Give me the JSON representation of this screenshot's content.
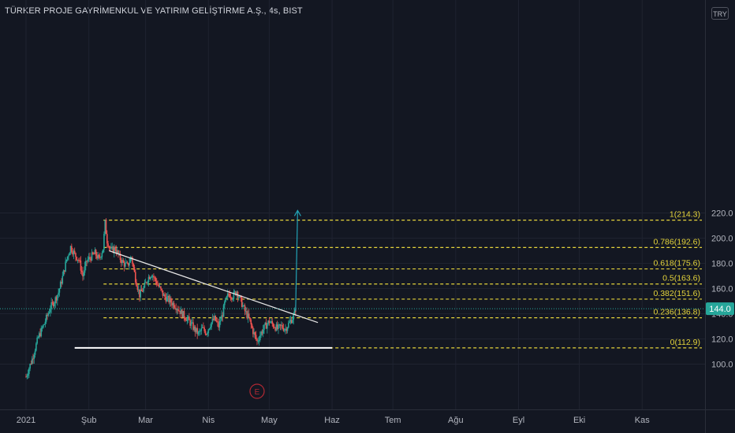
{
  "header": {
    "title": "TÜRKER PROJE GAYRİMENKUL VE YATIRIM GELİŞTİRME A.Ş., 4s, BIST",
    "currency": "TRY"
  },
  "colors": {
    "background": "#131722",
    "grid": "#1f2330",
    "fib": "#e5d43b",
    "up": "#26a69a",
    "down": "#ef5350",
    "trendline": "#e8e8e8",
    "support": "#ffffff",
    "arrow": "#22a2b5",
    "price_label": "#26a69a",
    "event": "#b22833"
  },
  "chart_data": {
    "type": "candlestick",
    "symbol": "TÜRKER PROJE GAYRİMENKUL VE YATIRIM GELİŞTİRME A.Ş.",
    "interval": "4s",
    "exchange": "BIST",
    "x_ticks": [
      "2021",
      "Şub",
      "Mar",
      "Nis",
      "May",
      "Haz",
      "Tem",
      "Ağu",
      "Eyl",
      "Eki",
      "Kas"
    ],
    "y_ticks": [
      100.0,
      120.0,
      140.0,
      160.0,
      180.0,
      200.0,
      220.0
    ],
    "y_tick_labels": [
      "100.0",
      "120.0",
      "140.0",
      "160.0",
      "180.0",
      "200.0",
      "220.0"
    ],
    "ylim": [
      80,
      233
    ],
    "last_price": 144.0,
    "last_price_label": "144.0",
    "fib_levels": [
      {
        "ratio": 1,
        "value": 214.3,
        "label": "1(214.3)"
      },
      {
        "ratio": 0.786,
        "value": 192.6,
        "label": "0.786(192.6)"
      },
      {
        "ratio": 0.618,
        "value": 175.6,
        "label": "0.618(175.6)"
      },
      {
        "ratio": 0.5,
        "value": 163.6,
        "label": "0.5(163.6)"
      },
      {
        "ratio": 0.382,
        "value": 151.6,
        "label": "0.382(151.6)"
      },
      {
        "ratio": 0.236,
        "value": 136.8,
        "label": "0.236(136.8)"
      },
      {
        "ratio": 0,
        "value": 112.9,
        "label": "0(112.9)"
      }
    ],
    "price_path": [
      [
        "2021-01-01",
        90
      ],
      [
        "2021-01-04",
        104
      ],
      [
        "2021-01-07",
        121
      ],
      [
        "2021-01-10",
        132
      ],
      [
        "2021-01-13",
        145
      ],
      [
        "2021-01-15",
        150
      ],
      [
        "2021-01-17",
        157
      ],
      [
        "2021-01-19",
        169
      ],
      [
        "2021-01-21",
        183
      ],
      [
        "2021-01-23",
        193
      ],
      [
        "2021-01-25",
        187
      ],
      [
        "2021-01-27",
        183
      ],
      [
        "2021-01-29",
        170
      ],
      [
        "2021-01-31",
        182
      ],
      [
        "2021-02-02",
        185
      ],
      [
        "2021-02-04",
        188
      ],
      [
        "2021-02-06",
        183
      ],
      [
        "2021-02-08",
        192
      ],
      [
        "2021-02-09",
        212
      ],
      [
        "2021-02-10",
        198
      ],
      [
        "2021-02-12",
        190
      ],
      [
        "2021-02-14",
        192
      ],
      [
        "2021-02-16",
        185
      ],
      [
        "2021-02-18",
        180
      ],
      [
        "2021-02-20",
        178
      ],
      [
        "2021-02-22",
        185
      ],
      [
        "2021-02-24",
        168
      ],
      [
        "2021-02-26",
        155
      ],
      [
        "2021-02-28",
        160
      ],
      [
        "2021-03-02",
        168
      ],
      [
        "2021-03-04",
        172
      ],
      [
        "2021-03-06",
        166
      ],
      [
        "2021-03-08",
        160
      ],
      [
        "2021-03-10",
        154
      ],
      [
        "2021-03-13",
        150
      ],
      [
        "2021-03-16",
        146
      ],
      [
        "2021-03-19",
        140
      ],
      [
        "2021-03-22",
        135
      ],
      [
        "2021-03-25",
        128
      ],
      [
        "2021-03-27",
        124
      ],
      [
        "2021-03-29",
        128
      ],
      [
        "2021-03-31",
        125
      ],
      [
        "2021-04-02",
        132
      ],
      [
        "2021-04-04",
        136
      ],
      [
        "2021-04-06",
        130
      ],
      [
        "2021-04-08",
        140
      ],
      [
        "2021-04-09",
        148
      ],
      [
        "2021-04-11",
        156
      ],
      [
        "2021-04-13",
        154
      ],
      [
        "2021-04-15",
        158
      ],
      [
        "2021-04-17",
        150
      ],
      [
        "2021-04-19",
        142
      ],
      [
        "2021-04-21",
        136
      ],
      [
        "2021-04-23",
        126
      ],
      [
        "2021-04-25",
        118
      ],
      [
        "2021-04-27",
        125
      ],
      [
        "2021-04-29",
        130
      ],
      [
        "2021-05-01",
        134
      ],
      [
        "2021-05-03",
        131
      ],
      [
        "2021-05-05",
        128
      ],
      [
        "2021-05-07",
        130
      ],
      [
        "2021-05-09",
        128
      ],
      [
        "2021-05-11",
        133
      ],
      [
        "2021-05-13",
        138
      ],
      [
        "2021-05-14",
        144
      ]
    ],
    "annotations": {
      "trendline": {
        "from": [
          "2021-02-11",
          190
        ],
        "to": [
          "2021-05-25",
          133
        ]
      },
      "support_line": {
        "from": [
          "2021-01-25",
          112.9
        ],
        "to": [
          "2021-06-01",
          112.9
        ]
      },
      "arrow": {
        "from": [
          "2021-05-14",
          142
        ],
        "to": [
          "2021-05-15",
          222
        ]
      },
      "event_marker": {
        "date": "2021-04-25",
        "label": "E"
      }
    }
  }
}
